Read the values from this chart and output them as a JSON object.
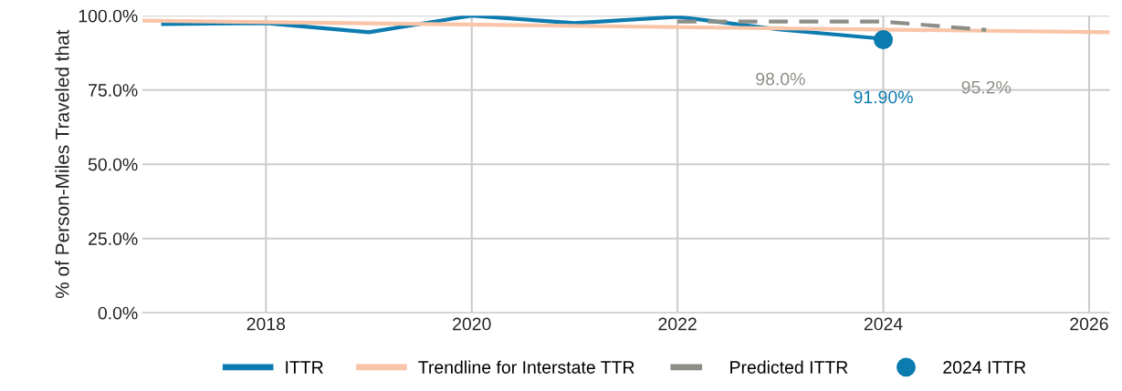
{
  "chart_data": {
    "type": "line",
    "ylabel": "% of Person-Miles Traveled that",
    "xlim": [
      2016.8,
      2026.2
    ],
    "xticks": [
      2018,
      2020,
      2022,
      2024,
      2026
    ],
    "ylim": [
      0,
      100
    ],
    "yticks": [
      {
        "value": 0,
        "label": "0.0%"
      },
      {
        "value": 25,
        "label": "25.0%"
      },
      {
        "value": 50,
        "label": "50.0%"
      },
      {
        "value": 75,
        "label": "75.0%"
      },
      {
        "value": 100,
        "label": "100.0%"
      }
    ],
    "grid": true,
    "legend": "bottom",
    "series": [
      {
        "name": "ITTR",
        "color": "#0b7bb0",
        "x": [
          2017,
          2018,
          2019,
          2020,
          2021,
          2022,
          2023,
          2024
        ],
        "values": [
          97.2,
          97.5,
          94.4,
          100,
          97.5,
          99.6,
          95.3,
          92.2
        ]
      },
      {
        "name": "Trendline for Interstate TTR",
        "color": "#f9c4a7",
        "x": [
          2016.8,
          2026.2
        ],
        "values": [
          98.3,
          94.4
        ]
      },
      {
        "name": "Predicted ITTR",
        "line_style": "dashed",
        "color": "#8c8f87",
        "x": [
          2022,
          2023,
          2024,
          2025
        ],
        "values": [
          98.0,
          98.0,
          98.0,
          95.2
        ],
        "value_labels": [
          null,
          "98.0%",
          null,
          "95.2%"
        ]
      },
      {
        "name": "2024 ITTR",
        "type": "scatter",
        "marker": "circle",
        "color": "#0b7bb0",
        "x": [
          2024
        ],
        "values": [
          91.9
        ],
        "value_labels": [
          "91.90%"
        ]
      }
    ]
  }
}
